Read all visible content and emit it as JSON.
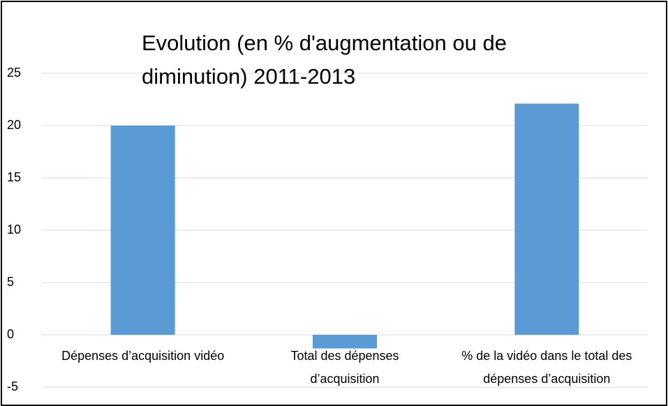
{
  "chart_data": {
    "type": "bar",
    "title": "Evolution (en % d'augmentation ou de diminution) 2011-2013",
    "categories": [
      "Dépenses d’acquisition vidéo",
      "Total des dépenses d’acquisition",
      "% de la vidéo dans le total des dépenses d’acquisition"
    ],
    "values": [
      20,
      -1.3,
      22.1
    ],
    "color": "#5b9bd5",
    "ylim": [
      -5,
      25
    ],
    "yticks": [
      -5,
      0,
      5,
      10,
      15,
      20,
      25
    ],
    "grid": true
  }
}
